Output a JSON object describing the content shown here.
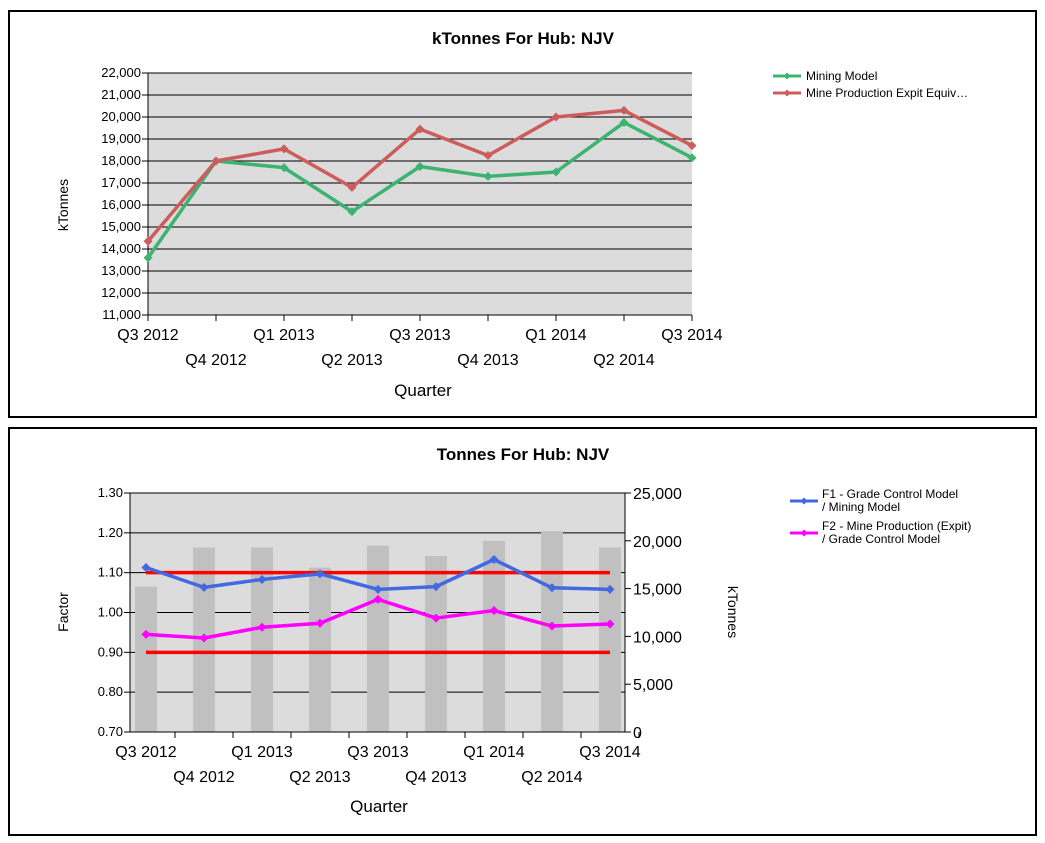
{
  "chart_data": [
    {
      "type": "line",
      "title": "kTonnes For Hub: NJV",
      "xlabel": "Quarter",
      "ylabel": "kTonnes",
      "categories": [
        "Q3 2012",
        "Q4 2012",
        "Q1 2013",
        "Q2 2013",
        "Q3 2013",
        "Q4 2013",
        "Q1 2014",
        "Q2 2014",
        "Q3 2014"
      ],
      "yticks": [
        "11,000",
        "12,000",
        "13,000",
        "14,000",
        "15,000",
        "16,000",
        "17,000",
        "18,000",
        "19,000",
        "20,000",
        "21,000",
        "22,000"
      ],
      "ylim": [
        11000,
        22000
      ],
      "grid": true,
      "legend_position": "right",
      "series": [
        {
          "name": "Mining Model",
          "color": "#3cb371",
          "values": [
            13600,
            18000,
            17700,
            15700,
            17750,
            17300,
            17500,
            19750,
            18150
          ]
        },
        {
          "name": "Mine  Production  Expit Equiv…",
          "color": "#cd5c5c",
          "values": [
            14350,
            18000,
            18550,
            16800,
            19450,
            18250,
            20000,
            20300,
            18700
          ]
        }
      ]
    },
    {
      "type": "line",
      "title": "Tonnes For Hub: NJV",
      "xlabel": "Quarter",
      "ylabel": "Factor",
      "y2label": "kTonnes",
      "categories": [
        "Q3 2012",
        "Q4 2012",
        "Q1 2013",
        "Q2 2013",
        "Q3 2013",
        "Q4 2013",
        "Q1 2014",
        "Q2 2014",
        "Q3 2014"
      ],
      "yticks": [
        "0.70",
        "0.80",
        "0.90",
        "1.00",
        "1.10",
        "1.20",
        "1.30"
      ],
      "y2ticks": [
        "0",
        "5,000",
        "10,000",
        "15,000",
        "20,000",
        "25,000"
      ],
      "ylim": [
        0.7,
        1.3
      ],
      "y2lim": [
        0,
        25000
      ],
      "grid": true,
      "legend_position": "right",
      "bars": {
        "color": "#c0c0c0",
        "values": [
          15200,
          19300,
          19300,
          17200,
          19500,
          18400,
          20000,
          21000,
          19300
        ]
      },
      "reference_lines": {
        "color": "#ff0000",
        "values": [
          1.1,
          0.9
        ]
      },
      "series": [
        {
          "name": "F1 - Grade Control Model\n/ Mining Model",
          "color": "#4169e1",
          "values": [
            1.113,
            1.063,
            1.083,
            1.097,
            1.058,
            1.065,
            1.133,
            1.062,
            1.058
          ]
        },
        {
          "name": "F2 - Mine Production (Expit)\n/ Grade Control Model",
          "color": "#ff00ff",
          "values": [
            0.945,
            0.936,
            0.963,
            0.973,
            1.033,
            0.986,
            1.005,
            0.966,
            0.971
          ]
        }
      ]
    }
  ]
}
